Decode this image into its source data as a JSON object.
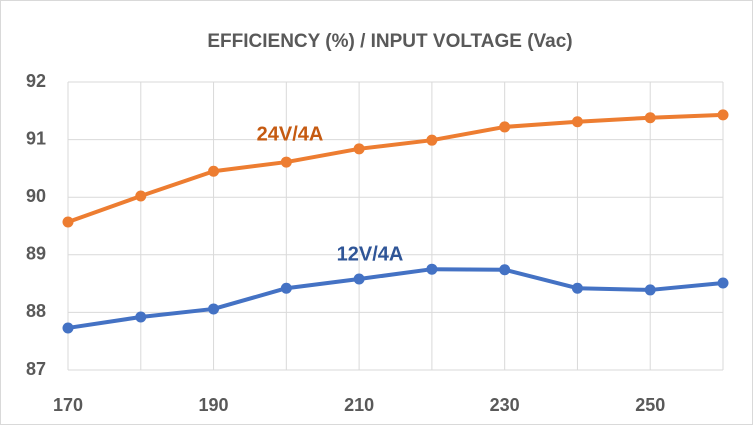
{
  "chart_data": {
    "type": "line",
    "title": "EFFICIENCY (%) / INPUT VOLTAGE (Vac)",
    "x": [
      170,
      180,
      190,
      200,
      210,
      220,
      230,
      240,
      250,
      260
    ],
    "series": [
      {
        "name": "24V/4A",
        "color": "#ed7d31",
        "values": [
          89.57,
          90.02,
          90.45,
          90.61,
          90.84,
          90.99,
          91.22,
          91.31,
          91.38,
          91.43
        ]
      },
      {
        "name": "12V/4A",
        "color": "#4472c4",
        "values": [
          87.73,
          87.92,
          88.06,
          88.42,
          88.58,
          88.75,
          88.74,
          88.42,
          88.39,
          88.51
        ]
      }
    ],
    "xlim": [
      170,
      260
    ],
    "xticks": [
      170,
      190,
      210,
      230,
      250
    ],
    "ylim": [
      87,
      92
    ],
    "yticks": [
      87,
      88,
      89,
      90,
      91,
      92
    ],
    "grid": true
  }
}
